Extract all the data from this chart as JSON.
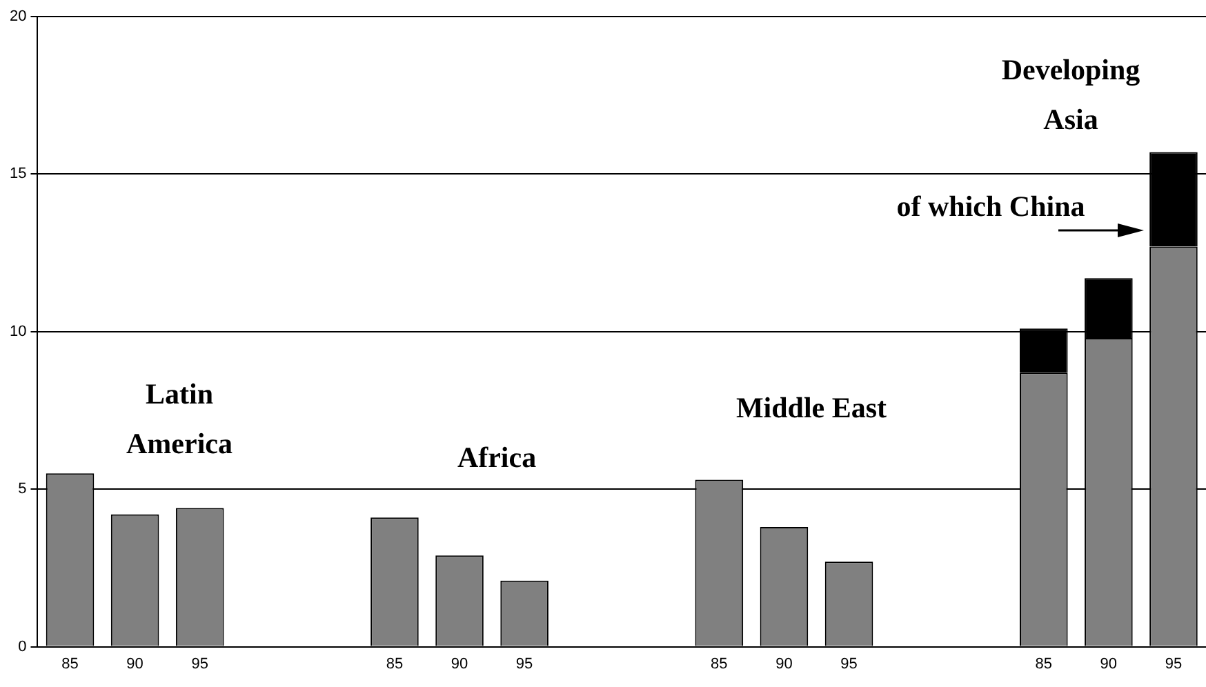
{
  "chart_data": {
    "type": "bar",
    "stacked": true,
    "categories": [
      "85",
      "90",
      "95",
      null,
      null,
      "85",
      "90",
      "95",
      null,
      null,
      "85",
      "90",
      "95",
      null,
      null,
      "85",
      "90",
      "95"
    ],
    "series": [
      {
        "color": "#808080",
        "values": [
          5.5,
          4.2,
          4.4,
          null,
          null,
          4.1,
          2.9,
          2.1,
          null,
          null,
          5.3,
          3.8,
          2.7,
          null,
          null,
          8.7,
          9.8,
          12.7
        ]
      },
      {
        "color": "#000000",
        "values": [
          null,
          null,
          null,
          null,
          null,
          null,
          null,
          null,
          null,
          null,
          null,
          null,
          null,
          null,
          null,
          1.4,
          1.9,
          3.0
        ]
      }
    ],
    "ylim": [
      0,
      20
    ],
    "yticks": [
      0,
      5,
      10,
      15,
      20
    ],
    "grid": "y",
    "annotations": [
      "Latin America",
      "Africa",
      "Middle East",
      "Developing Asia",
      "of which China"
    ]
  }
}
